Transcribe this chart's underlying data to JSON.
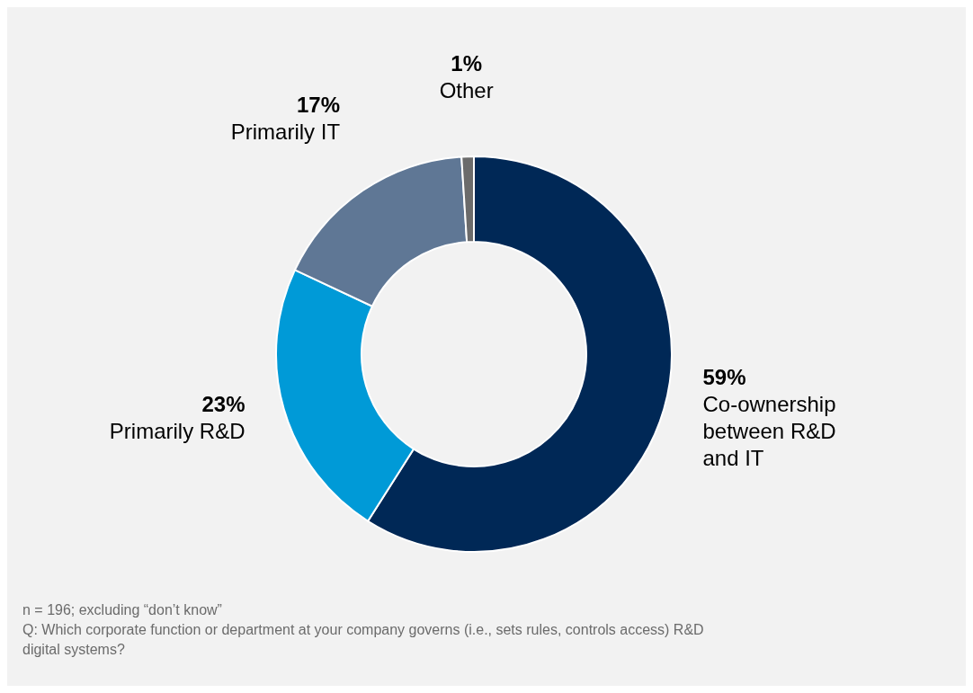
{
  "chart_data": {
    "type": "donut",
    "categories": [
      "Co-ownership between R&D and IT",
      "Primarily R&D",
      "Primarily IT",
      "Other"
    ],
    "values": [
      59,
      23,
      17,
      1
    ],
    "colors": [
      "#002856",
      "#009ad7",
      "#5f7795",
      "#6b6b6b"
    ],
    "value_labels": [
      "59%",
      "23%",
      "17%",
      "1%"
    ],
    "legend": false,
    "annotations": [
      "n = 196; excluding “don’t know”",
      "Q: Which corporate function or department at your company governs (i.e., sets rules, controls access) R&D digital systems?"
    ]
  }
}
